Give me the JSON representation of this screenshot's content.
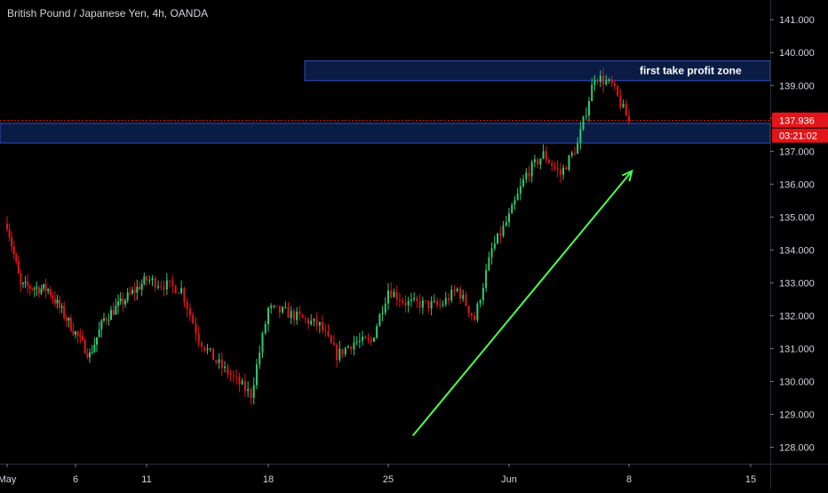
{
  "header": {
    "symbol_title": "British Pound / Japanese Yen, 4h, OANDA"
  },
  "colors": {
    "background": "#000000",
    "up": "#2ecc71",
    "down": "#e3151a",
    "price_line": "#e3151a",
    "zone_fill": "#0b1c44",
    "zone_border": "#2e4fbf",
    "arrow": "#4cff4c",
    "axis_text": "#d1d4dc"
  },
  "price_badge": {
    "value": "137.936",
    "countdown": "03:21:02"
  },
  "annotations": {
    "upper_zone_label": "first take profit zone",
    "upper_zone": [
      139.15,
      139.75
    ],
    "lower_zone": [
      137.25,
      137.85
    ],
    "arrow": {
      "from": {
        "x": "May 29",
        "y": 128.35
      },
      "to": {
        "x": "Jun 12",
        "y": 136.4
      }
    }
  },
  "chart_data": {
    "type": "candlestick",
    "title": "British Pound / Japanese Yen, 4h, OANDA",
    "ylim": [
      127.5,
      141.6
    ],
    "y_ticks": [
      "141.000",
      "140.000",
      "139.000",
      "138.000",
      "137.000",
      "136.000",
      "135.000",
      "134.000",
      "133.000",
      "132.000",
      "131.000",
      "130.000",
      "129.000",
      "128.000"
    ],
    "x_ticks": [
      "May",
      "6",
      "11",
      "18",
      "25",
      "Jun",
      "8",
      "15"
    ],
    "current_price": 137.936,
    "waypoints": [
      [
        "May 1",
        134.8
      ],
      [
        "May 2",
        132.9
      ],
      [
        "May 4",
        132.8
      ],
      [
        "May 7",
        130.8
      ],
      [
        "May 8",
        131.9
      ],
      [
        "May 10",
        132.7
      ],
      [
        "May 11",
        133.1
      ],
      [
        "May 13",
        132.8
      ],
      [
        "May 14",
        131.3
      ],
      [
        "May 15",
        130.6
      ],
      [
        "May 17",
        129.6
      ],
      [
        "May 18",
        132.2
      ],
      [
        "May 19",
        132.1
      ],
      [
        "May 21",
        131.7
      ],
      [
        "May 22",
        130.8
      ],
      [
        "May 23",
        131.2
      ],
      [
        "May 24",
        131.2
      ],
      [
        "May 25",
        132.8
      ],
      [
        "May 26",
        132.4
      ],
      [
        "May 28",
        132.3
      ],
      [
        "May 29",
        132.8
      ],
      [
        "May 30",
        131.9
      ],
      [
        "May 31",
        134.0
      ],
      [
        "Jun 1",
        135.0
      ],
      [
        "Jun 2",
        136.3
      ],
      [
        "Jun 3",
        136.9
      ],
      [
        "Jun 4",
        136.3
      ],
      [
        "Jun 5",
        137.2
      ],
      [
        "Jun 6",
        139.3
      ],
      [
        "Jun 7",
        139.0
      ],
      [
        "Jun 8",
        137.9
      ]
    ]
  }
}
